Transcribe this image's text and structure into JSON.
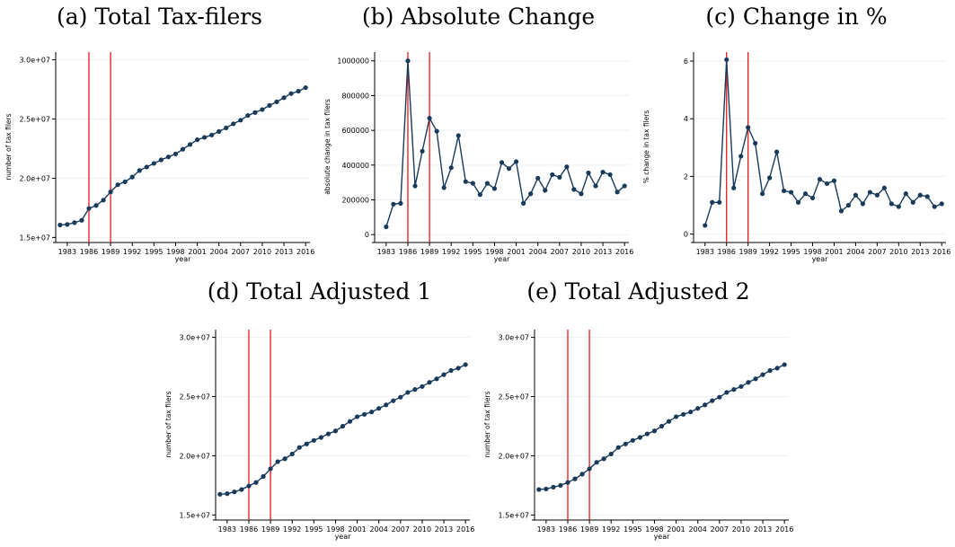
{
  "years": [
    1982,
    1983,
    1984,
    1985,
    1986,
    1987,
    1988,
    1989,
    1990,
    1991,
    1992,
    1993,
    1994,
    1995,
    1996,
    1997,
    1998,
    1999,
    2000,
    2001,
    2002,
    2003,
    2004,
    2005,
    2006,
    2007,
    2008,
    2009,
    2010,
    2011,
    2012,
    2013,
    2014,
    2015,
    2016
  ],
  "colors": {
    "line": "#1a3a5c",
    "vline": "#e8191d",
    "grid": "#eaf0f4",
    "axis": "#000000"
  },
  "chart_data": [
    {
      "id": "a",
      "type": "line",
      "caption": "(a) Total Tax-filers",
      "xlabel": "year",
      "ylabel": "number of tax filers",
      "ylim": [
        14800000,
        30500000
      ],
      "yticks": [
        15000000,
        20000000,
        25000000,
        30000000
      ],
      "ytick_labels": [
        "1.5e+07",
        "2.0e+07",
        "2.5e+07",
        "3.0e+07"
      ],
      "xticks": [
        1983,
        1986,
        1989,
        1992,
        1995,
        1998,
        2001,
        2004,
        2007,
        2010,
        2013,
        2016
      ],
      "vlines": [
        1986,
        1989
      ],
      "grid": true,
      "values": [
        16050000,
        16100000,
        16250000,
        16450000,
        17450000,
        17700000,
        18150000,
        18850000,
        19450000,
        19700000,
        20100000,
        20650000,
        20950000,
        21250000,
        21550000,
        21800000,
        22050000,
        22450000,
        22850000,
        23250000,
        23450000,
        23650000,
        23950000,
        24250000,
        24600000,
        24900000,
        25300000,
        25550000,
        25800000,
        26150000,
        26450000,
        26800000,
        27150000,
        27350000,
        27650000
      ]
    },
    {
      "id": "b",
      "type": "line",
      "caption": "(b) Absolute Change",
      "xlabel": "year",
      "ylabel": "absolute change in tax filers",
      "ylim": [
        -30000,
        1040000
      ],
      "yticks": [
        0,
        200000,
        400000,
        600000,
        800000,
        1000000
      ],
      "ytick_labels": [
        "0",
        "200000",
        "400000",
        "600000",
        "800000",
        "1000000"
      ],
      "xticks": [
        1983,
        1986,
        1989,
        1992,
        1995,
        1998,
        2001,
        2004,
        2007,
        2010,
        2013,
        2016
      ],
      "vlines": [
        1986,
        1989
      ],
      "grid": true,
      "values": [
        45000,
        175000,
        180000,
        1000000,
        280000,
        480000,
        670000,
        595000,
        270000,
        385000,
        570000,
        305000,
        295000,
        230000,
        295000,
        265000,
        415000,
        380000,
        420000,
        180000,
        235000,
        325000,
        255000,
        345000,
        330000,
        390000,
        260000,
        235000,
        355000,
        280000,
        360000,
        345000,
        245000,
        280000
      ]
    },
    {
      "id": "c",
      "type": "line",
      "caption": "(c) Change in %",
      "xlabel": "year",
      "ylabel": "% change in tax filers",
      "ylim": [
        -0.2,
        6.25
      ],
      "yticks": [
        0,
        2,
        4,
        6
      ],
      "ytick_labels": [
        "0",
        "2",
        "4",
        "6"
      ],
      "xticks": [
        1983,
        1986,
        1989,
        1992,
        1995,
        1998,
        2001,
        2004,
        2007,
        2010,
        2013,
        2016
      ],
      "vlines": [
        1986,
        1989
      ],
      "grid": true,
      "values": [
        0.3,
        1.1,
        1.1,
        6.05,
        1.6,
        2.7,
        3.7,
        3.15,
        1.4,
        1.95,
        2.85,
        1.5,
        1.45,
        1.1,
        1.4,
        1.25,
        1.9,
        1.75,
        1.85,
        0.8,
        1.0,
        1.35,
        1.05,
        1.45,
        1.35,
        1.6,
        1.05,
        0.95,
        1.4,
        1.1,
        1.35,
        1.3,
        0.95,
        1.05
      ]
    },
    {
      "id": "d",
      "type": "line",
      "caption": "(d) Total Adjusted 1",
      "xlabel": "year",
      "ylabel": "number of tax filers",
      "ylim": [
        14800000,
        30500000
      ],
      "yticks": [
        15000000,
        20000000,
        25000000,
        30000000
      ],
      "ytick_labels": [
        "1.5e+07",
        "2.0e+07",
        "2.5e+07",
        "3.0e+07"
      ],
      "xticks": [
        1983,
        1986,
        1989,
        1992,
        1995,
        1998,
        2001,
        2004,
        2007,
        2010,
        2013,
        2016
      ],
      "vlines": [
        1986,
        1989
      ],
      "grid": true,
      "values": [
        16750000,
        16800000,
        16950000,
        17150000,
        17450000,
        17750000,
        18250000,
        18900000,
        19500000,
        19750000,
        20150000,
        20700000,
        21000000,
        21300000,
        21550000,
        21850000,
        22100000,
        22500000,
        22900000,
        23300000,
        23500000,
        23700000,
        24000000,
        24300000,
        24650000,
        24950000,
        25350000,
        25600000,
        25850000,
        26200000,
        26500000,
        26850000,
        27200000,
        27400000,
        27700000
      ]
    },
    {
      "id": "e",
      "type": "line",
      "caption": "(e) Total Adjusted 2",
      "xlabel": "year",
      "ylabel": "number of tax filers",
      "ylim": [
        14800000,
        30500000
      ],
      "yticks": [
        15000000,
        20000000,
        25000000,
        30000000
      ],
      "ytick_labels": [
        "1.5e+07",
        "2.0e+07",
        "2.5e+07",
        "3.0e+07"
      ],
      "xticks": [
        1983,
        1986,
        1989,
        1992,
        1995,
        1998,
        2001,
        2004,
        2007,
        2010,
        2013,
        2016
      ],
      "vlines": [
        1986,
        1989
      ],
      "grid": true,
      "values": [
        17150000,
        17200000,
        17350000,
        17500000,
        17750000,
        18050000,
        18450000,
        18900000,
        19450000,
        19750000,
        20150000,
        20700000,
        21000000,
        21300000,
        21550000,
        21850000,
        22100000,
        22500000,
        22900000,
        23300000,
        23500000,
        23700000,
        24000000,
        24300000,
        24650000,
        24950000,
        25350000,
        25600000,
        25850000,
        26200000,
        26500000,
        26850000,
        27200000,
        27400000,
        27700000
      ]
    }
  ]
}
